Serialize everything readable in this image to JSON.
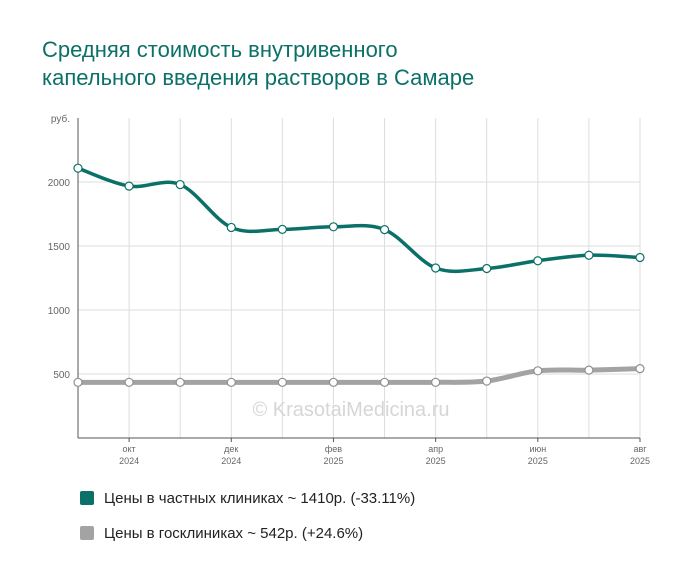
{
  "title_line1": "Средняя стоимость внутривенного",
  "title_line2": "капельного введения растворов в Самаре",
  "watermark": "© KrasotaiMedicina.ru",
  "colors": {
    "private": "#0b7168",
    "public": "#a3a3a3",
    "grid": "#dddddd",
    "axis": "#555555"
  },
  "legend": [
    {
      "label": "Цены в частных клиниках ~ 1410р. (-33.11%)",
      "color": "#0b7168"
    },
    {
      "label": "Цены в госклиниках ~ 542р. (+24.6%)",
      "color": "#a3a3a3"
    }
  ],
  "chart_data": {
    "type": "line",
    "title": "Средняя стоимость внутривенного капельного введения растворов в Самаре",
    "ylabel": "руб.",
    "ylim": [
      0,
      2500
    ],
    "yticks": [
      "500",
      "1000",
      "1500",
      "2000"
    ],
    "x": [
      "2024-09",
      "2024-10",
      "2024-11",
      "2024-12",
      "2025-01",
      "2025-02",
      "2025-03",
      "2025-04",
      "2025-05",
      "2025-06",
      "2025-07",
      "2025-08"
    ],
    "xtick_labels": [
      {
        "month": "окт",
        "year": "2024"
      },
      {
        "month": "дек",
        "year": "2024"
      },
      {
        "month": "фев",
        "year": "2025"
      },
      {
        "month": "апр",
        "year": "2025"
      },
      {
        "month": "июн",
        "year": "2025"
      },
      {
        "month": "авг",
        "year": "2025"
      }
    ],
    "series": [
      {
        "name": "Цены в частных клиниках ~ 1410р. (-33.11%)",
        "values": [
          2108,
          1968,
          1980,
          1645,
          1630,
          1650,
          1628,
          1328,
          1324,
          1385,
          1428,
          1410
        ]
      },
      {
        "name": "Цены в госклиниках ~ 542р. (+24.6%)",
        "values": [
          435,
          435,
          435,
          435,
          435,
          435,
          435,
          435,
          445,
          525,
          530,
          542
        ]
      }
    ]
  }
}
